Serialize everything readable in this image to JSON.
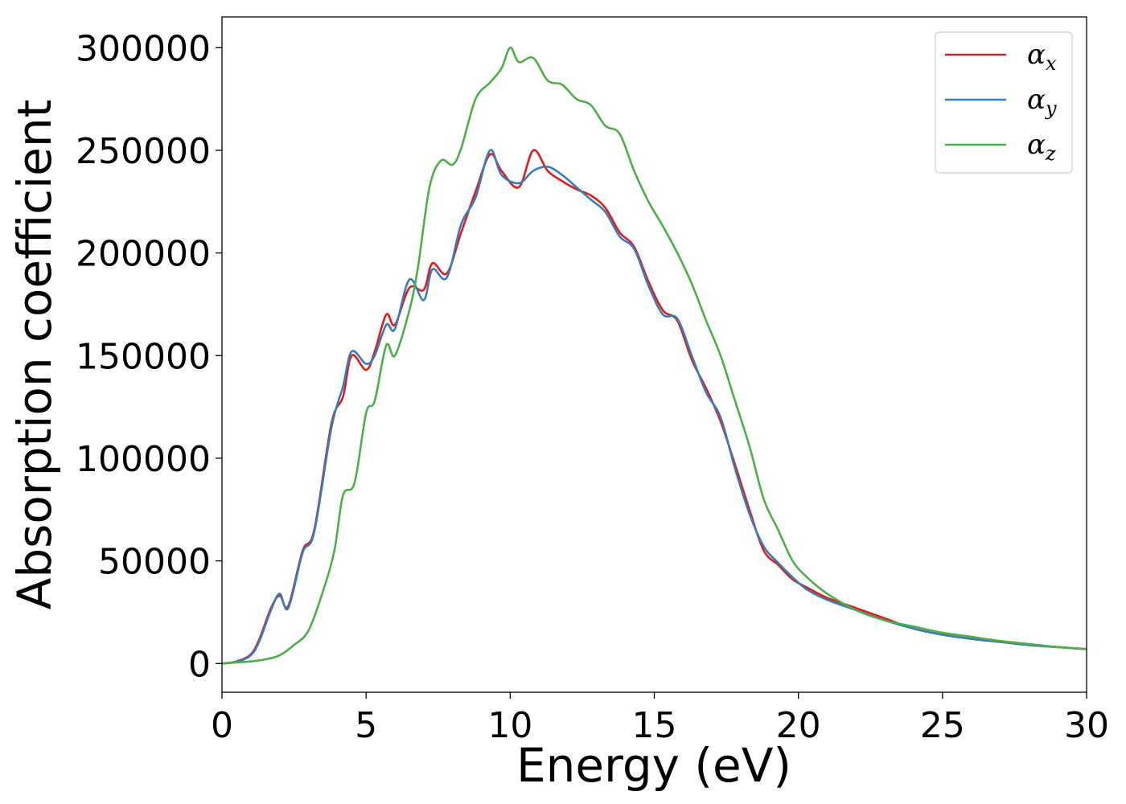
{
  "chart_data": {
    "type": "line",
    "title": "",
    "xlabel": "Energy (eV)",
    "ylabel": "Absorption coefficient",
    "xlim": [
      0,
      30
    ],
    "ylim": [
      -14000,
      315000
    ],
    "xticks": [
      0,
      5,
      10,
      15,
      20,
      25,
      30
    ],
    "xtick_labels": [
      "0",
      "5",
      "10",
      "15",
      "20",
      "25",
      "30"
    ],
    "yticks": [
      0,
      50000,
      100000,
      150000,
      200000,
      250000,
      300000
    ],
    "ytick_labels": [
      "0",
      "50000",
      "100000",
      "150000",
      "200000",
      "250000",
      "300000"
    ],
    "grid": false,
    "legend_position": "top-right",
    "series": [
      {
        "name": "α_x",
        "symbol": "α",
        "subscript": "x",
        "color": "#e41a1c",
        "x": [
          0,
          0.5,
          1.0,
          1.3,
          1.7,
          2.0,
          2.3,
          2.8,
          3.2,
          3.8,
          4.2,
          4.5,
          5.0,
          5.3,
          5.7,
          6.0,
          6.5,
          7.0,
          7.3,
          7.8,
          8.3,
          8.8,
          9.3,
          9.7,
          10.3,
          10.8,
          11.3,
          11.8,
          12.3,
          12.8,
          13.3,
          13.8,
          14.3,
          14.8,
          15.3,
          15.8,
          16.3,
          16.8,
          17.3,
          17.8,
          18.3,
          18.8,
          19.3,
          19.8,
          20.3,
          21.0,
          22.0,
          23.0,
          24.0,
          25.0,
          26.0,
          27.0,
          28.0,
          29.0,
          30.0
        ],
        "values": [
          0,
          1000,
          4500,
          12000,
          27000,
          33000,
          28000,
          55000,
          65000,
          117000,
          130000,
          150000,
          143000,
          152000,
          170000,
          165000,
          183000,
          182000,
          195000,
          190000,
          210000,
          230000,
          248000,
          240000,
          232000,
          250000,
          240000,
          235000,
          231000,
          228000,
          222000,
          210000,
          203000,
          186000,
          172000,
          167000,
          148000,
          134000,
          118000,
          97000,
          75000,
          55000,
          48000,
          41000,
          37000,
          32000,
          27000,
          22000,
          17000,
          14000,
          12000,
          10500,
          9000,
          8000,
          7000
        ]
      },
      {
        "name": "α_y",
        "symbol": "α",
        "subscript": "y",
        "color": "#377eb8",
        "x": [
          0,
          0.5,
          1.0,
          1.3,
          1.7,
          2.0,
          2.3,
          2.8,
          3.2,
          3.8,
          4.2,
          4.5,
          5.0,
          5.3,
          5.7,
          6.0,
          6.5,
          7.0,
          7.3,
          7.8,
          8.3,
          8.8,
          9.3,
          9.7,
          10.3,
          10.8,
          11.3,
          11.8,
          12.3,
          12.8,
          13.3,
          13.8,
          14.3,
          14.8,
          15.3,
          15.8,
          16.3,
          16.8,
          17.3,
          17.8,
          18.3,
          18.8,
          19.3,
          19.8,
          20.3,
          21.0,
          22.0,
          23.0,
          24.0,
          25.0,
          26.0,
          27.0,
          28.0,
          29.0,
          30.0
        ],
        "values": [
          0,
          800,
          4000,
          11000,
          26000,
          34000,
          27000,
          54000,
          64000,
          115000,
          135000,
          152000,
          146000,
          150000,
          165000,
          163000,
          187000,
          177000,
          192000,
          188000,
          214000,
          227000,
          250000,
          238000,
          234000,
          240000,
          242000,
          238000,
          232000,
          226000,
          220000,
          208000,
          202000,
          184000,
          170000,
          168000,
          150000,
          132000,
          120000,
          95000,
          73000,
          57000,
          49000,
          42000,
          36000,
          31000,
          26000,
          21000,
          17000,
          14000,
          12000,
          10500,
          9000,
          8000,
          7000
        ]
      },
      {
        "name": "α_z",
        "symbol": "α",
        "subscript": "z",
        "color": "#4daf4a",
        "x": [
          0,
          0.5,
          1.0,
          1.5,
          2.0,
          2.5,
          3.0,
          3.5,
          3.9,
          4.2,
          4.6,
          5.0,
          5.3,
          5.7,
          6.0,
          6.5,
          6.8,
          7.2,
          7.6,
          8.0,
          8.3,
          8.8,
          9.3,
          9.7,
          10.0,
          10.3,
          10.8,
          11.3,
          11.8,
          12.3,
          12.8,
          13.3,
          13.8,
          14.3,
          14.8,
          15.3,
          15.8,
          16.3,
          16.8,
          17.3,
          17.8,
          18.3,
          18.8,
          19.3,
          19.8,
          20.3,
          21.0,
          22.0,
          23.0,
          24.0,
          25.0,
          26.0,
          27.0,
          28.0,
          29.0,
          30.0
        ],
        "values": [
          0,
          500,
          1000,
          2000,
          4000,
          9000,
          16000,
          35000,
          55000,
          82000,
          88000,
          122000,
          128000,
          155000,
          150000,
          172000,
          193000,
          232000,
          245000,
          243000,
          251000,
          275000,
          283000,
          290000,
          300000,
          293000,
          295000,
          284000,
          282000,
          275000,
          272000,
          262000,
          258000,
          240000,
          225000,
          213000,
          200000,
          185000,
          167000,
          150000,
          128000,
          106000,
          80000,
          65000,
          50000,
          42000,
          34000,
          26000,
          21000,
          18000,
          15000,
          13000,
          11000,
          9500,
          8000,
          7000
        ]
      }
    ]
  }
}
